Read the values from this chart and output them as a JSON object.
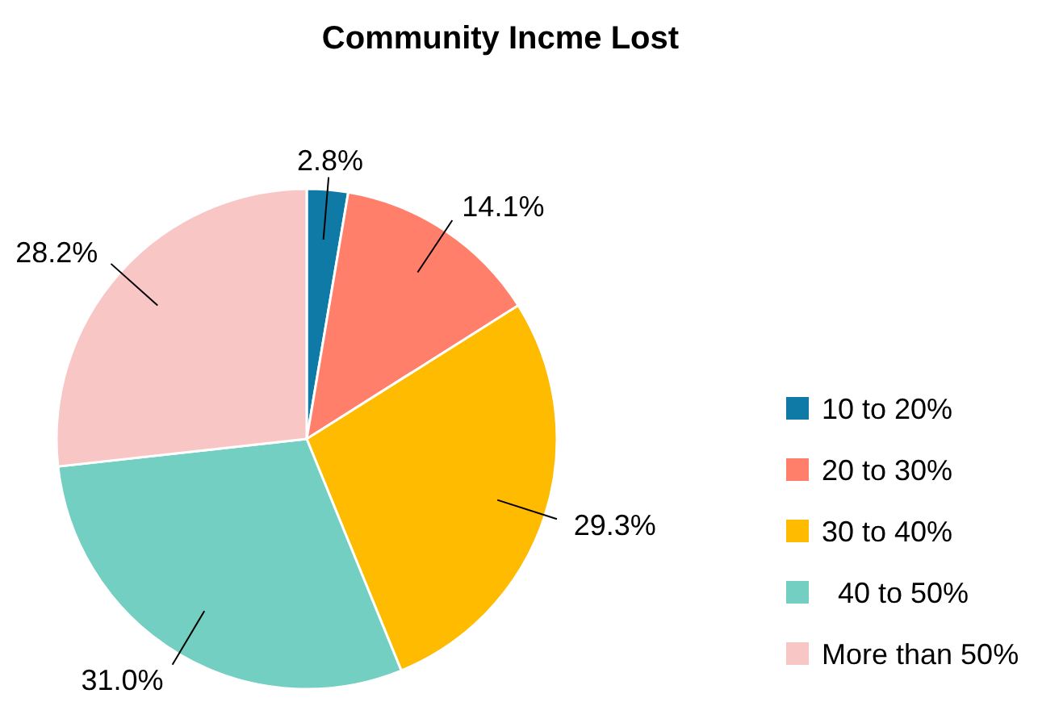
{
  "chart_data": {
    "type": "pie",
    "title": "Community Incme Lost",
    "categories": [
      "10 to 20%",
      "20 to 30%",
      "30 to 40%",
      "  40 to 50%",
      "More than 50%"
    ],
    "values": [
      2.8,
      14.1,
      29.3,
      31.0,
      28.2
    ],
    "value_labels": [
      "2.8%",
      "14.1%",
      "29.3%",
      "31.0%",
      "28.2%"
    ],
    "colors": [
      "#0f7aa6",
      "#ff7f6b",
      "#ffbb00",
      "#72cfc1",
      "#f9c6c6"
    ],
    "legend": "right"
  }
}
